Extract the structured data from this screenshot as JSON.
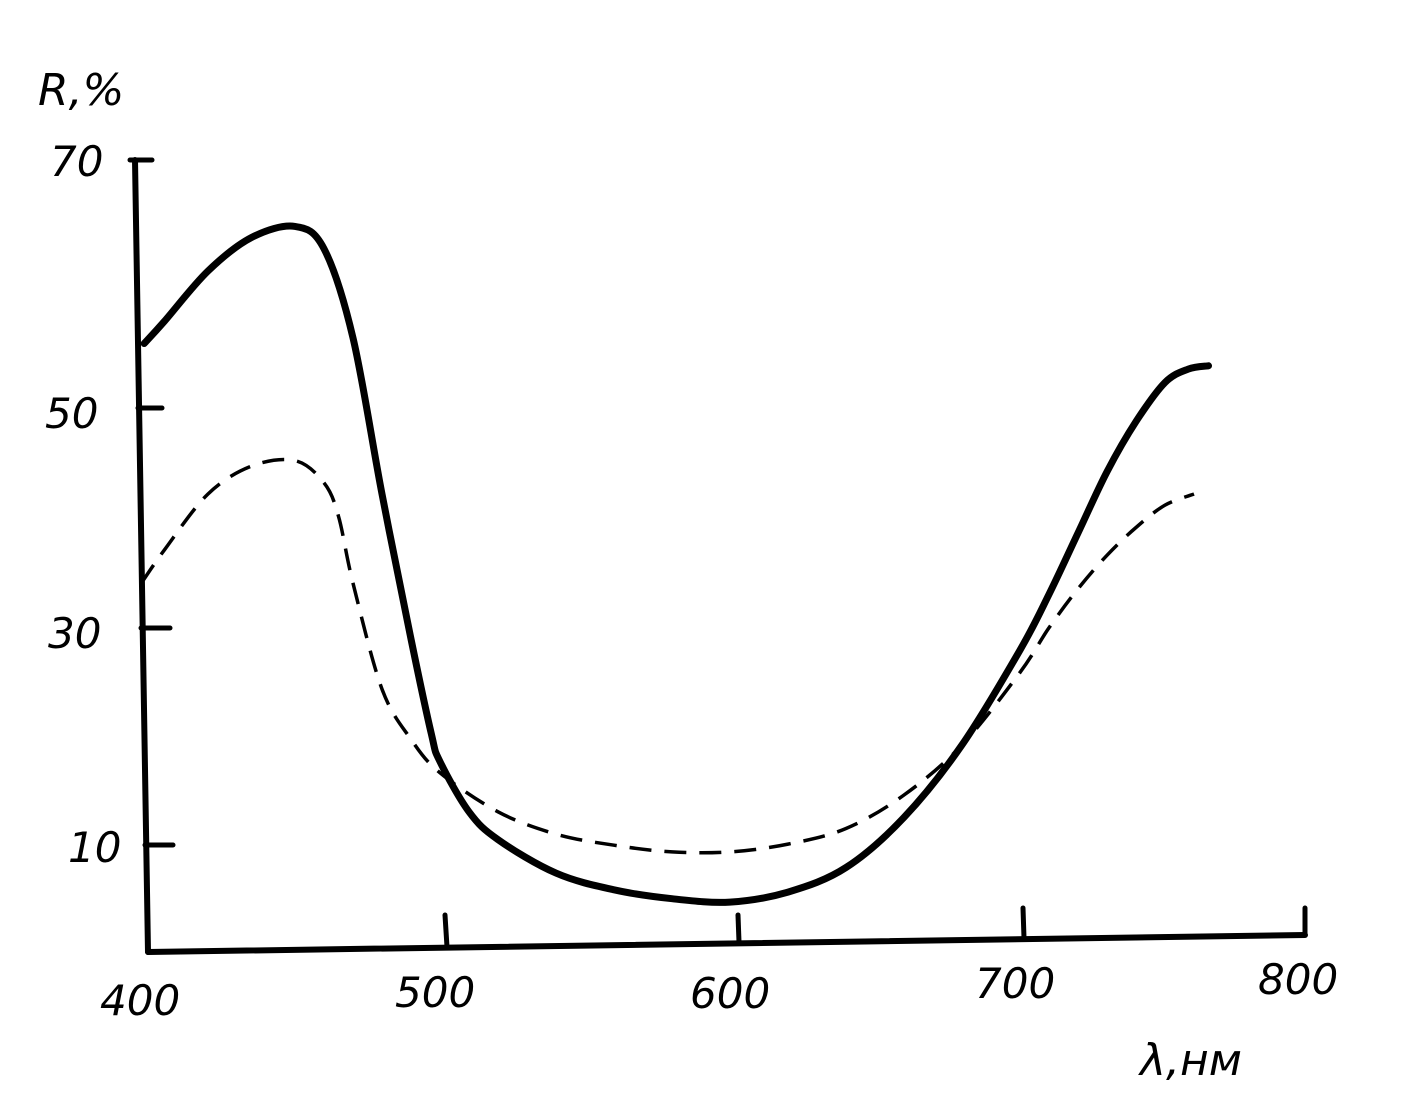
{
  "chart_data": {
    "type": "line",
    "ylabel": "R,%",
    "xlabel": "λ,нм",
    "xlim": [
      400,
      800
    ],
    "ylim": [
      0,
      70
    ],
    "x_ticks": [
      "400",
      "500",
      "600",
      "700",
      "800"
    ],
    "y_ticks": [
      "10",
      "30",
      "50",
      "70"
    ],
    "grid": false,
    "series": [
      {
        "style": "solid",
        "x": [
          398,
          405,
          420,
          435,
          450,
          460,
          470,
          480,
          490,
          497,
          500,
          510,
          520,
          540,
          560,
          580,
          600,
          620,
          640,
          660,
          680,
          700,
          710,
          720,
          730,
          740,
          750,
          758,
          765
        ],
        "y": [
          53.5,
          55.5,
          60,
          63,
          64,
          62,
          54,
          40,
          27,
          18.5,
          16,
          11.5,
          9,
          6,
          4.5,
          3.7,
          3.4,
          4.3,
          6.5,
          11,
          17.5,
          26,
          31,
          36.5,
          42,
          46.5,
          50,
          51.2,
          51.5
        ]
      },
      {
        "style": "dashed",
        "x": [
          397,
          405,
          420,
          435,
          450,
          460,
          465,
          470,
          480,
          490,
          500,
          520,
          540,
          560,
          580,
          600,
          620,
          640,
          660,
          680,
          700,
          710,
          720,
          730,
          740,
          750,
          760
        ],
        "y": [
          32,
          35,
          40,
          42.5,
          43,
          41,
          38,
          32,
          22.5,
          18,
          15,
          11.5,
          9.5,
          8.5,
          7.9,
          7.9,
          8.6,
          10,
          13,
          17.5,
          24,
          28,
          31.5,
          34.5,
          37,
          39,
          40
        ]
      }
    ]
  }
}
